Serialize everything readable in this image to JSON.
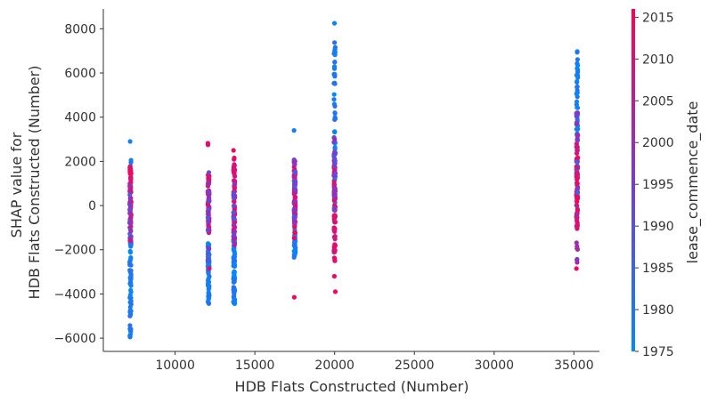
{
  "chart_data": {
    "type": "scatter",
    "title": "",
    "xlabel": "HDB Flats Constructed (Number)",
    "ylabel_lines": [
      "SHAP value for",
      "HDB Flats Constructed (Number)"
    ],
    "xlim": [
      5500,
      36600
    ],
    "ylim": [
      -6600,
      8900
    ],
    "xticks": [
      10000,
      15000,
      20000,
      25000,
      30000,
      35000
    ],
    "xtick_labels": [
      "10000",
      "15000",
      "20000",
      "25000",
      "30000",
      "35000"
    ],
    "yticks": [
      -6000,
      -4000,
      -2000,
      0,
      2000,
      4000,
      6000,
      8000
    ],
    "ytick_labels": [
      "−6000",
      "−4000",
      "−2000",
      "0",
      "2000",
      "4000",
      "6000",
      "8000"
    ],
    "grid": false,
    "colorbar": {
      "label": "lease_commence_date",
      "range": [
        1975,
        2016
      ],
      "ticks": [
        1975,
        1980,
        1985,
        1990,
        1995,
        2000,
        2005,
        2010,
        2015
      ],
      "tick_labels": [
        "1975",
        "1980",
        "1985",
        "1990",
        "1995",
        "2000",
        "2005",
        "2010",
        "2015"
      ],
      "color_low": "#008bfb",
      "color_mid": "#7c3ad1",
      "color_high": "#ff0052"
    },
    "columns": [
      {
        "x": 7200,
        "y_range_old": [
          -5950,
          -1200
        ],
        "y_range_new": [
          -1100,
          1800
        ],
        "mid_min": -1600,
        "mid_max": 1000,
        "outliers": [
          {
            "y": 2900,
            "year": 1977
          },
          {
            "y": 2050,
            "year": 1978
          },
          {
            "y": 1950,
            "year": 1979
          }
        ]
      },
      {
        "x": 12100,
        "y_range_old": [
          -4500,
          -1700
        ],
        "y_range_new": [
          -1200,
          1400
        ],
        "mid_min": -2500,
        "mid_max": 1200,
        "outliers": [
          {
            "y": 2820,
            "year": 2013
          },
          {
            "y": 2750,
            "year": 2012
          },
          {
            "y": 1500,
            "year": 1992
          },
          {
            "y": -2850,
            "year": 2011
          }
        ]
      },
      {
        "x": 13700,
        "y_range_old": [
          -4550,
          -1500
        ],
        "y_range_new": [
          -1500,
          2200
        ],
        "mid_min": -1800,
        "mid_max": 1200,
        "outliers": [
          {
            "y": 2500,
            "year": 2012
          }
        ]
      },
      {
        "x": 17500,
        "y_range_old": [
          -2400,
          1200
        ],
        "y_range_new": [
          -1500,
          2000
        ],
        "mid_min": -800,
        "mid_max": 2200,
        "outliers": [
          {
            "y": 3400,
            "year": 1978
          },
          {
            "y": -4150,
            "year": 2013
          }
        ]
      },
      {
        "x": 20000,
        "y_range_old": [
          -1200,
          7600
        ],
        "y_range_new": [
          -2600,
          2500
        ],
        "mid_min": -300,
        "mid_max": 3500,
        "outliers": [
          {
            "y": 8250,
            "year": 1977
          },
          {
            "y": -3200,
            "year": 2013
          },
          {
            "y": -3900,
            "year": 2014
          }
        ]
      },
      {
        "x": 35200,
        "y_range_old": [
          -1000,
          7000
        ],
        "y_range_new": [
          -1100,
          2800
        ],
        "mid_min": -2600,
        "mid_max": 4500,
        "outliers": [
          {
            "y": -2850,
            "year": 2013
          }
        ]
      }
    ]
  }
}
